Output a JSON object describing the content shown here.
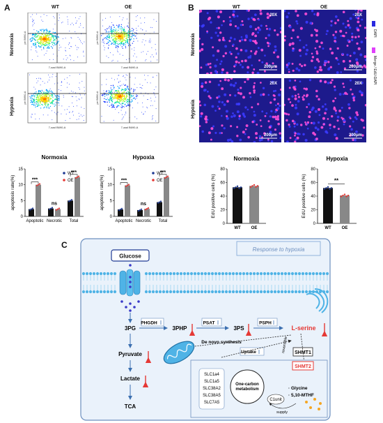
{
  "panelA": {
    "letter": "A",
    "columns": [
      "WT",
      "OE"
    ],
    "rows": [
      "Normoxia",
      "Hypoxia"
    ],
    "flow_xlabel": "7-aad B690-A",
    "flow_ylabel": "pe B690-A",
    "charts": [
      {
        "title": "Normoxia",
        "ylabel": "apoptosis rate(%)",
        "categories": [
          "Apoptotic",
          "Necrotic",
          "Total"
        ],
        "series": [
          {
            "name": "WT",
            "values": [
              2.3,
              2.5,
              5.0
            ]
          },
          {
            "name": "OE",
            "values": [
              10.0,
              2.3,
              12.4
            ]
          }
        ],
        "ylim": [
          0,
          15
        ],
        "yticks": [
          "0",
          "5",
          "10",
          "15"
        ],
        "significance": [
          "***",
          "ns",
          "***"
        ]
      },
      {
        "title": "Hypoxia",
        "ylabel": "apoptosis rate(%)",
        "categories": [
          "Apoptotic",
          "Necrotic",
          "Total"
        ],
        "series": [
          {
            "name": "WT",
            "values": [
              2.2,
              2.0,
              4.5
            ]
          },
          {
            "name": "OE",
            "values": [
              9.8,
              2.4,
              12.4
            ]
          }
        ],
        "ylim": [
          0,
          15
        ],
        "yticks": [
          "0",
          "5",
          "10",
          "15"
        ],
        "significance": [
          "***",
          "ns",
          "***"
        ]
      }
    ]
  },
  "panelB": {
    "letter": "B",
    "columns": [
      "WT",
      "OE"
    ],
    "rows": [
      "Normoxia",
      "Hypoxia"
    ],
    "magnification": "20X",
    "scale": "200μm",
    "legend": [
      "DAPI",
      "Merge / EdU-DAPI"
    ],
    "charts": [
      {
        "title": "Normoxia",
        "ylabel": "EdU positive cells (%)",
        "categories": [
          "WT",
          "OE"
        ],
        "values": [
          53,
          55
        ],
        "ylim": [
          0,
          80
        ],
        "yticks": [
          "0",
          "20",
          "40",
          "60",
          "80"
        ],
        "significance": ""
      },
      {
        "title": "Hypoxia",
        "ylabel": "EdU positive cells (%)",
        "categories": [
          "WT",
          "OE"
        ],
        "values": [
          52,
          41
        ],
        "ylim": [
          0,
          80
        ],
        "yticks": [
          "0",
          "20",
          "40",
          "60",
          "80"
        ],
        "significance": "**"
      }
    ]
  },
  "panelC": {
    "letter": "C",
    "hypoxia_label": "Response to hypoxia",
    "glucose": "Glucose",
    "metabolites": {
      "m3pg": "3PG",
      "m3php": "3PHP",
      "m3ps": "3PS",
      "lserine": "L-serine",
      "pyruvate": "Pyruvate",
      "lactate": "Lactate",
      "tca": "TCA"
    },
    "enzymes": {
      "phgdh": "PHGDH",
      "psat": "PSAT",
      "psph": "PSPH",
      "shmt1": "SHMT1",
      "shmt2": "SHMT2"
    },
    "de_novo": "De novo synthesis",
    "uptake": "Uptake",
    "reversible": "reversible",
    "transporters": [
      "SLC1a4",
      "SLC1a5",
      "SLC38A2",
      "SLC38A5",
      "SLC7A5"
    ],
    "one_carbon": "One-carbon metabolism",
    "c1unit": "C1unit",
    "glycine": "· Glycine",
    "mthf": "· 5,10-MTHF",
    "supply": "supply"
  },
  "colors": {
    "wt": "#1f3a93",
    "oe": "#e53935",
    "dapi": "#2a2ae0",
    "merge": "#e040fb",
    "micro_bg": "#1d1a8c"
  }
}
